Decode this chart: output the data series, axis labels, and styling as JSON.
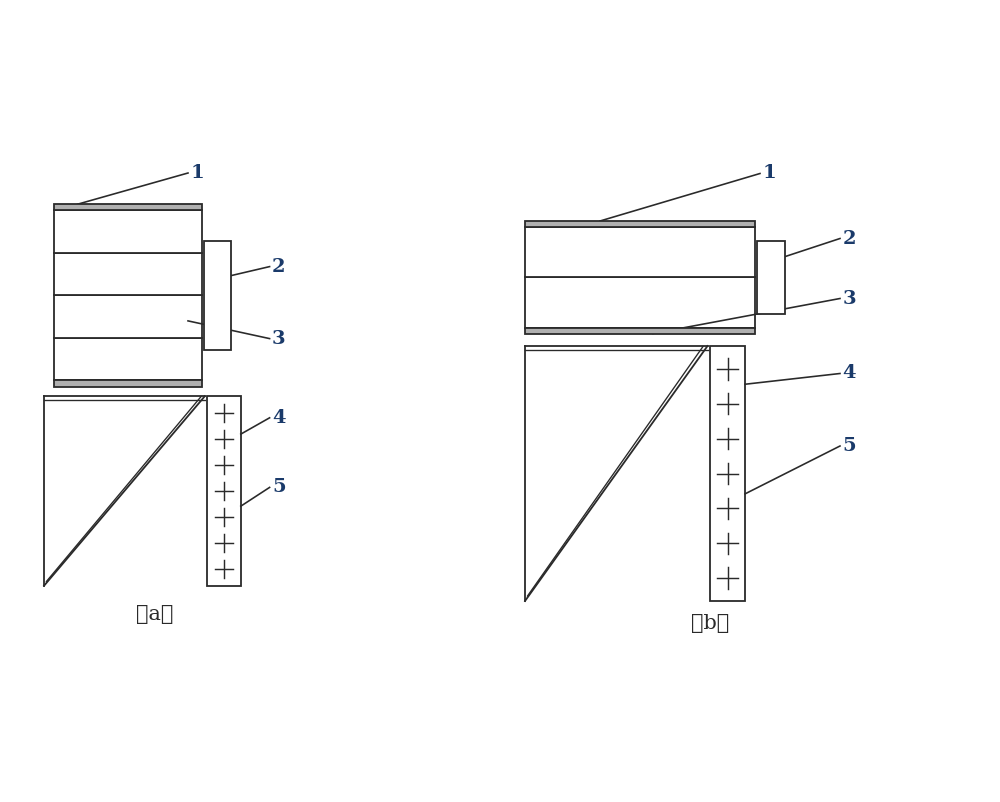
{
  "bg_color": "#ffffff",
  "line_color": "#2a2a2a",
  "label_color": "#1a3a6a",
  "fig_width": 10.0,
  "fig_height": 8.02,
  "label_a": "（a）",
  "label_b": "（b）",
  "lw": 1.3
}
